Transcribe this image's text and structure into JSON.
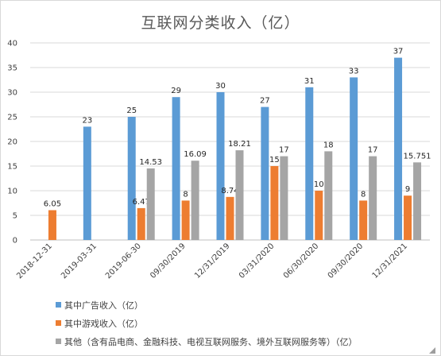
{
  "chart_data": {
    "type": "bar",
    "title": "互联网分类收入（亿）",
    "categories": [
      "2018-12-31",
      "2019-03-31",
      "2019-06-30",
      "09/30/2019",
      "12/31/2019",
      "03/31/2020",
      "06/30/2020",
      "09/30/2020",
      "12/31/2021"
    ],
    "ylim": [
      0,
      40
    ],
    "yticks": [
      0,
      5,
      10,
      15,
      20,
      25,
      30,
      35,
      40
    ],
    "grid": true,
    "legend_position": "bottom",
    "series": [
      {
        "name": "其中广告收入（亿）",
        "color": "#5b9bd5",
        "values": [
          null,
          23,
          25,
          29,
          30,
          27,
          31,
          33,
          37
        ],
        "labels": [
          "",
          "23",
          "25",
          "29",
          "30",
          "27",
          "31",
          "33",
          "37"
        ]
      },
      {
        "name": "其中游戏收入（亿）",
        "color": "#ed7d31",
        "values": [
          6.05,
          null,
          6.47,
          8,
          8.74,
          15,
          10,
          8,
          9
        ],
        "labels": [
          "6.05",
          "",
          "6.47",
          "8",
          "8.74",
          "15",
          "10",
          "8",
          "9"
        ]
      },
      {
        "name": "其他（含有品电商、金融科技、电视互联网服务、境外互联网服务等）（亿）",
        "color": "#a5a5a5",
        "values": [
          null,
          null,
          14.53,
          16.09,
          18.21,
          17,
          18,
          17,
          15.751
        ],
        "labels": [
          "",
          "",
          "14.53",
          "16.09",
          "18.21",
          "17",
          "18",
          "17",
          "15.751"
        ]
      }
    ]
  }
}
